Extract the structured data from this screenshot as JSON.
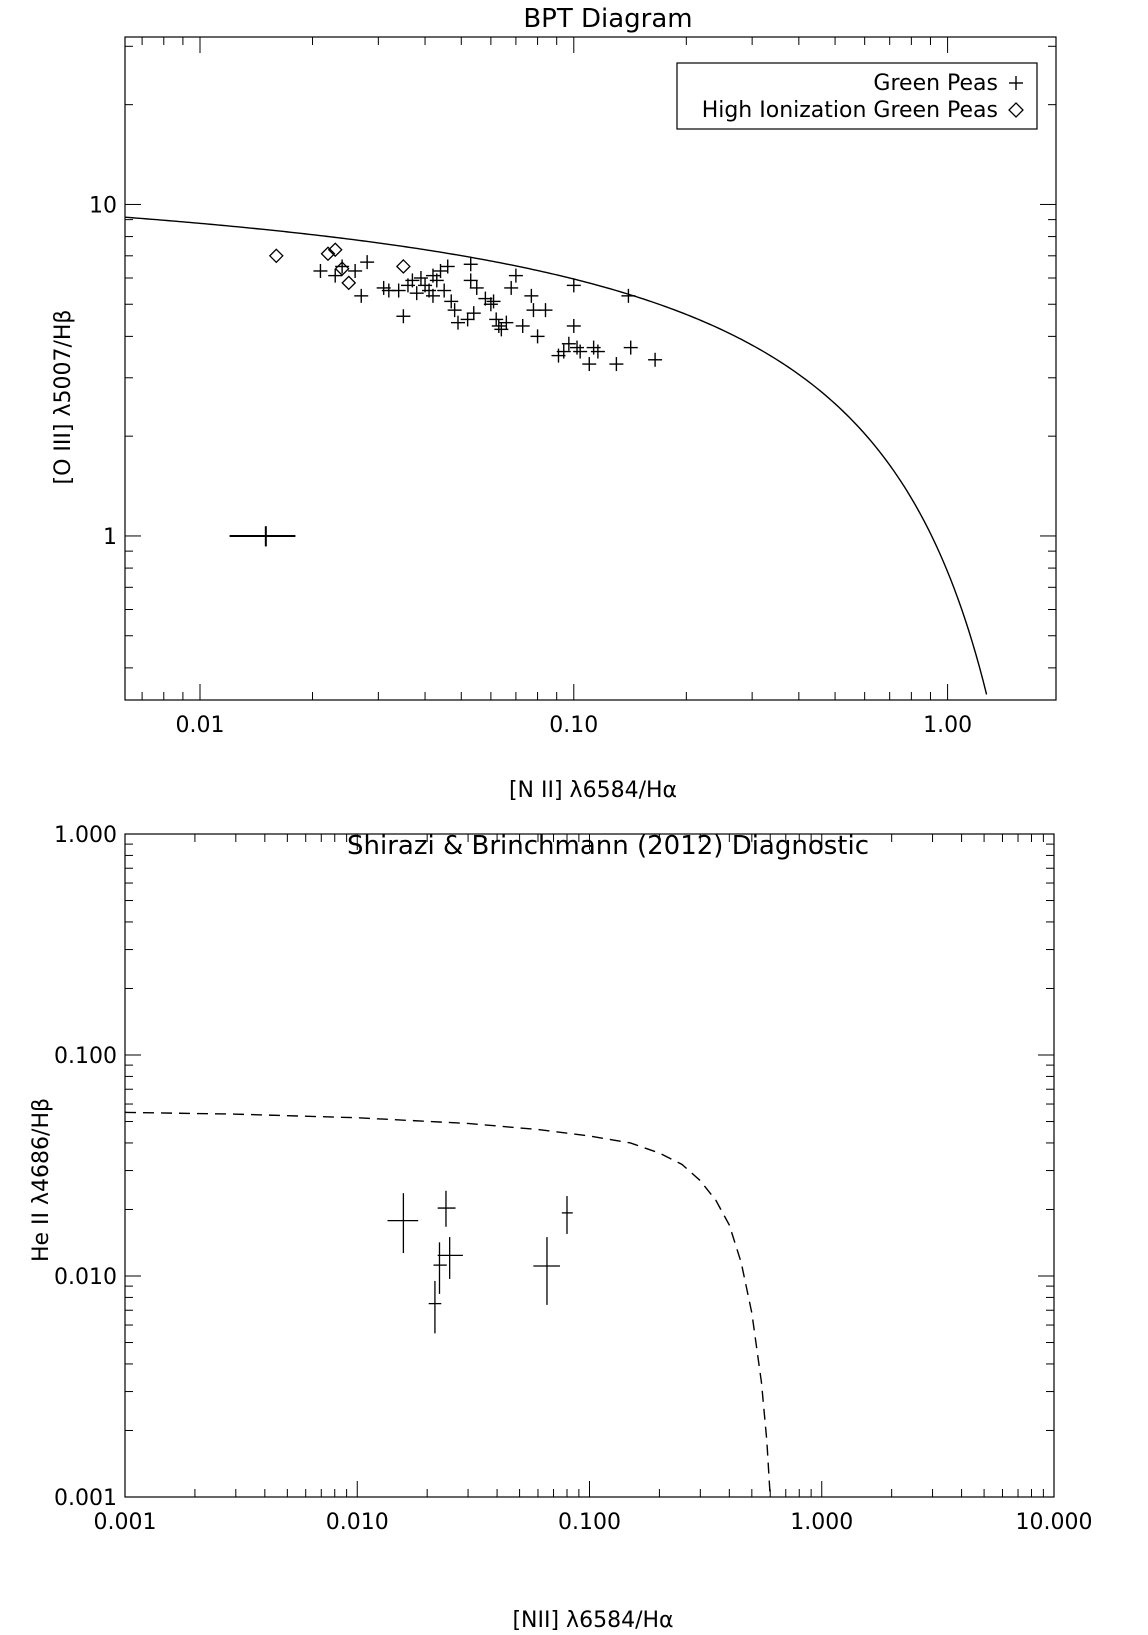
{
  "chart_data": [
    {
      "type": "scatter",
      "title": "BPT Diagram",
      "xlabel": "[N II] λ6584/Hα",
      "ylabel": "[O III] λ5007/Hβ",
      "xscale": "log",
      "yscale": "log",
      "xlim": [
        0.0063,
        1.95
      ],
      "ylim": [
        0.32,
        32
      ],
      "xtick_labels": [
        "0.01",
        "0.10",
        "1.00"
      ],
      "xtick_values": [
        0.01,
        0.1,
        1.0
      ],
      "ytick_labels": [
        "1",
        "10"
      ],
      "ytick_values": [
        1,
        10
      ],
      "legend_position": "top-right",
      "curve_color": "#000000",
      "series": [
        {
          "name": "Green Peas",
          "marker": "plus",
          "points": [
            [
              0.021,
              6.3
            ],
            [
              0.023,
              6.1
            ],
            [
              0.024,
              6.5
            ],
            [
              0.026,
              6.3
            ],
            [
              0.027,
              5.3
            ],
            [
              0.028,
              6.7
            ],
            [
              0.031,
              5.6
            ],
            [
              0.032,
              5.5
            ],
            [
              0.034,
              5.5
            ],
            [
              0.035,
              4.6
            ],
            [
              0.036,
              5.7
            ],
            [
              0.037,
              5.9
            ],
            [
              0.038,
              5.4
            ],
            [
              0.039,
              6.0
            ],
            [
              0.04,
              5.7
            ],
            [
              0.041,
              5.5
            ],
            [
              0.042,
              6.1
            ],
            [
              0.042,
              5.3
            ],
            [
              0.043,
              5.9
            ],
            [
              0.044,
              6.3
            ],
            [
              0.045,
              5.5
            ],
            [
              0.046,
              6.5
            ],
            [
              0.047,
              5.1
            ],
            [
              0.048,
              4.8
            ],
            [
              0.049,
              4.4
            ],
            [
              0.052,
              4.5
            ],
            [
              0.053,
              5.9
            ],
            [
              0.053,
              6.6
            ],
            [
              0.054,
              4.7
            ],
            [
              0.055,
              5.6
            ],
            [
              0.058,
              5.2
            ],
            [
              0.06,
              5.0
            ],
            [
              0.061,
              5.1
            ],
            [
              0.062,
              4.5
            ],
            [
              0.063,
              4.3
            ],
            [
              0.064,
              4.2
            ],
            [
              0.066,
              4.4
            ],
            [
              0.068,
              5.6
            ],
            [
              0.07,
              6.1
            ],
            [
              0.073,
              4.3
            ],
            [
              0.077,
              5.3
            ],
            [
              0.078,
              4.8
            ],
            [
              0.08,
              4.0
            ],
            [
              0.084,
              4.8
            ],
            [
              0.091,
              3.5
            ],
            [
              0.094,
              3.6
            ],
            [
              0.097,
              3.8
            ],
            [
              0.1,
              4.3
            ],
            [
              0.1,
              5.7
            ],
            [
              0.102,
              3.7
            ],
            [
              0.104,
              3.6
            ],
            [
              0.11,
              3.3
            ],
            [
              0.113,
              3.7
            ],
            [
              0.116,
              3.6
            ],
            [
              0.13,
              3.3
            ],
            [
              0.14,
              5.3
            ],
            [
              0.142,
              3.7
            ],
            [
              0.165,
              3.4
            ]
          ]
        },
        {
          "name": "High Ionization Green Peas",
          "marker": "diamond",
          "points": [
            [
              0.016,
              7.0
            ],
            [
              0.022,
              7.1
            ],
            [
              0.023,
              7.3
            ],
            [
              0.024,
              6.4
            ],
            [
              0.025,
              5.8
            ],
            [
              0.035,
              6.5
            ]
          ]
        },
        {
          "marker": "error-cross",
          "points": [
            {
              "x": 0.015,
              "y": 1.0,
              "xlo": 0.012,
              "xhi": 0.018,
              "ylo": 0.93,
              "yhi": 1.07
            }
          ]
        }
      ],
      "curve": {
        "style": "solid",
        "formula": "0.61/(log10(x)-0.47)+1.19",
        "x_range": [
          0.0063,
          1.3
        ]
      }
    },
    {
      "type": "scatter",
      "title": "Shirazi & Brinchmann (2012) Diagnostic",
      "xlabel": "[NII] λ6584/Hα",
      "ylabel": "He II λ4686/Hβ",
      "xscale": "log",
      "yscale": "log",
      "xlim": [
        0.001,
        10
      ],
      "ylim": [
        0.001,
        1
      ],
      "xtick_labels": [
        "0.001",
        "0.010",
        "0.100",
        "1.000",
        "10.000"
      ],
      "xtick_values": [
        0.001,
        0.01,
        0.1,
        1,
        10
      ],
      "ytick_labels": [
        "0.001",
        "0.010",
        "0.100",
        "1.000"
      ],
      "ytick_values": [
        0.001,
        0.01,
        0.1,
        1
      ],
      "curve_color": "#000000",
      "series": [
        {
          "marker": "error-cross",
          "points": [
            {
              "x": 0.0158,
              "y": 0.0178,
              "xlo": 0.0135,
              "xhi": 0.0183,
              "ylo": 0.0127,
              "yhi": 0.0237
            },
            {
              "x": 0.0216,
              "y": 0.0075,
              "xlo": 0.0203,
              "xhi": 0.023,
              "ylo": 0.0055,
              "yhi": 0.0095
            },
            {
              "x": 0.0226,
              "y": 0.0112,
              "xlo": 0.0213,
              "xhi": 0.0243,
              "ylo": 0.0083,
              "yhi": 0.0142
            },
            {
              "x": 0.0241,
              "y": 0.0203,
              "xlo": 0.0222,
              "xhi": 0.0265,
              "ylo": 0.0167,
              "yhi": 0.0243
            },
            {
              "x": 0.025,
              "y": 0.0124,
              "xlo": 0.0222,
              "xhi": 0.0285,
              "ylo": 0.0097,
              "yhi": 0.015
            },
            {
              "x": 0.0656,
              "y": 0.0111,
              "xlo": 0.0573,
              "xhi": 0.0746,
              "ylo": 0.0074,
              "yhi": 0.015
            },
            {
              "x": 0.08,
              "y": 0.0193,
              "xlo": 0.076,
              "xhi": 0.0847,
              "ylo": 0.0155,
              "yhi": 0.023
            }
          ]
        }
      ],
      "curve": {
        "style": "dashed",
        "points": [
          [
            0.001,
            0.055
          ],
          [
            0.003,
            0.054
          ],
          [
            0.01,
            0.052
          ],
          [
            0.03,
            0.049
          ],
          [
            0.06,
            0.046
          ],
          [
            0.1,
            0.043
          ],
          [
            0.15,
            0.04
          ],
          [
            0.2,
            0.036
          ],
          [
            0.25,
            0.032
          ],
          [
            0.3,
            0.027
          ],
          [
            0.35,
            0.022
          ],
          [
            0.4,
            0.017
          ],
          [
            0.45,
            0.0115
          ],
          [
            0.5,
            0.0068
          ],
          [
            0.55,
            0.0033
          ],
          [
            0.58,
            0.0018
          ],
          [
            0.6,
            0.001
          ]
        ]
      }
    }
  ]
}
